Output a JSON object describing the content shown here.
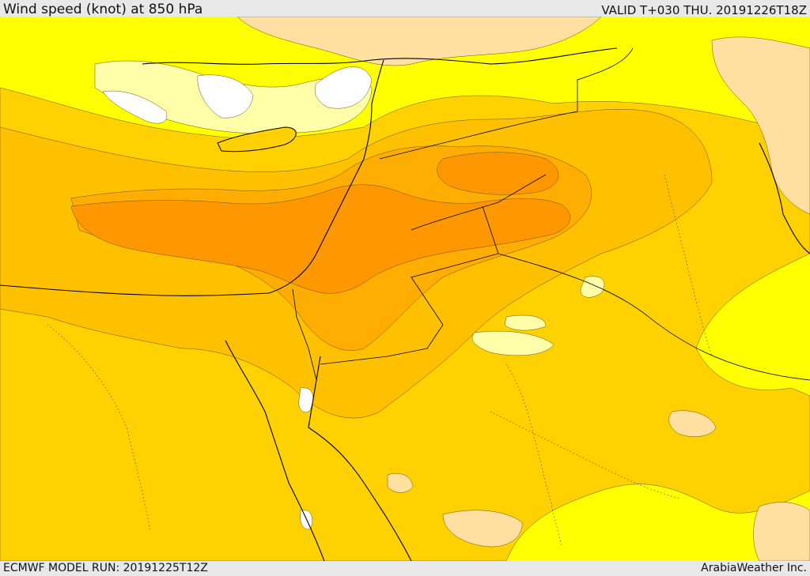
{
  "header": {
    "title": "Wind speed (knot) at 850 hPa",
    "valid": "VALID T+030 THU. 20191226T18Z"
  },
  "footer": {
    "model_run": "ECMWF MODEL RUN: 20191225T12Z",
    "credit": "ArabiaWeather Inc."
  },
  "colors": {
    "very_light": "#ffffff",
    "light": "#ffffaa",
    "calm": "#ffff00",
    "moderate": "#ffd100",
    "stronger": "#ffc000",
    "strong": "#ffad00",
    "strongest": "#ff9800",
    "peach": "#ffe0a0"
  }
}
